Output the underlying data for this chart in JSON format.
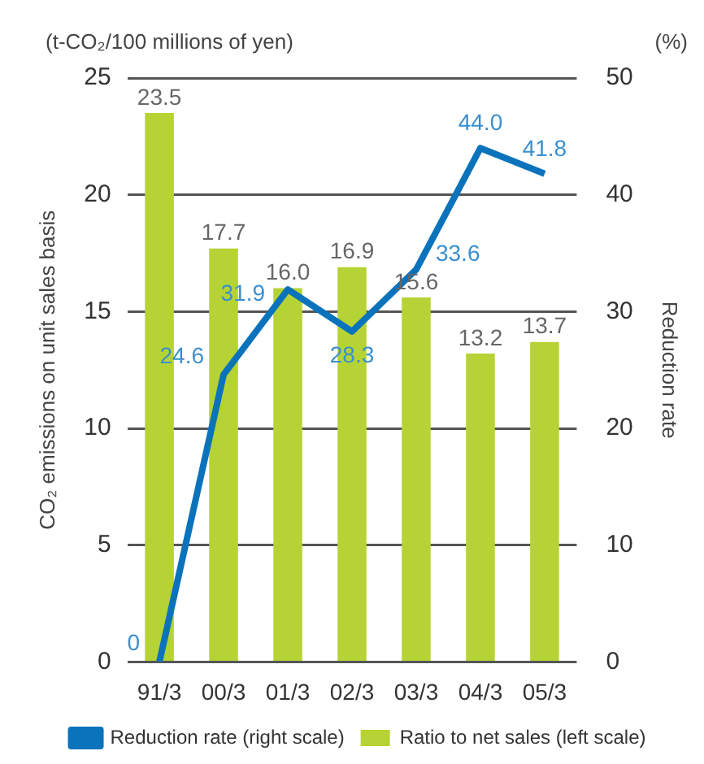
{
  "chart_data": {
    "type": "bar",
    "categories": [
      "91/3",
      "00/3",
      "01/3",
      "02/3",
      "03/3",
      "04/3",
      "05/3"
    ],
    "ylabel": "CO₂ emissions on unit sales basis",
    "y2label": "Reduction rate",
    "annotations": [
      "(t-CO₂/100 millions of yen)",
      "(%)"
    ],
    "series": [
      {
        "name": "Ratio to net sales (left scale)",
        "color": "#b5d334",
        "values": [
          23.5,
          17.7,
          16.0,
          16.9,
          15.6,
          13.2,
          13.7
        ],
        "value_labels": [
          "23.5",
          "17.7",
          "16.0",
          "16.9",
          "15.6",
          "13.2",
          "13.7"
        ]
      },
      {
        "name": "Reduction rate (right scale)",
        "type": "line",
        "axis": "y2",
        "color": "#0b73bb",
        "marker": "none",
        "line_style": "solid",
        "values": [
          0,
          24.6,
          31.9,
          28.3,
          33.6,
          44.0,
          41.8
        ],
        "value_labels": [
          "0",
          "24.6",
          "31.9",
          "28.3",
          "33.6",
          "44.0",
          "41.8"
        ]
      }
    ],
    "ylim": [
      0,
      25
    ],
    "yticks": [
      0,
      5,
      10,
      15,
      20,
      25
    ],
    "y2lim": [
      0,
      50
    ],
    "y2ticks": [
      0,
      10,
      20,
      30,
      40,
      50
    ],
    "grid": "y",
    "legend": "bottom"
  }
}
